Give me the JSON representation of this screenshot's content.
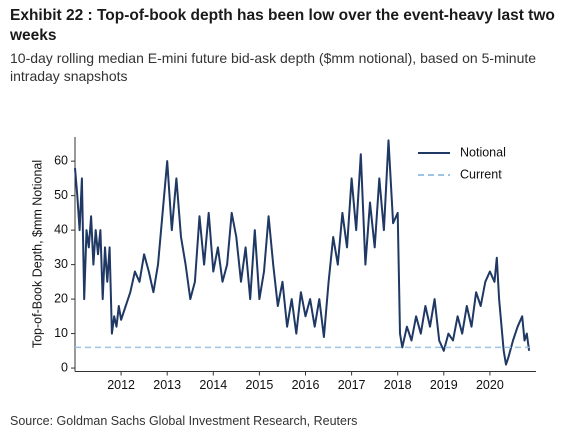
{
  "chart_data": {
    "type": "line",
    "title": "Exhibit 22 : Top-of-book depth has been low over the event-heavy last two weeks",
    "subtitle": "10-day rolling median E-mini future bid-ask depth ($mm notional), based on 5-minute intraday snapshots",
    "y_label": "Top-of-Book Depth, $mm Notional",
    "source": "Source: Goldman Sachs Global Investment Research, Reuters",
    "xlim": [
      2011,
      2021
    ],
    "xticks": [
      2012,
      2013,
      2014,
      2015,
      2016,
      2017,
      2018,
      2019,
      2020
    ],
    "ylim": [
      -1,
      67
    ],
    "yticks": [
      0,
      10,
      20,
      30,
      40,
      50,
      60
    ],
    "legend": "top-right",
    "series": [
      {
        "name": "Notional",
        "color": "#1f3864",
        "dash": false,
        "x": [
          2011.0,
          2011.05,
          2011.1,
          2011.15,
          2011.2,
          2011.25,
          2011.3,
          2011.35,
          2011.4,
          2011.45,
          2011.5,
          2011.55,
          2011.6,
          2011.65,
          2011.7,
          2011.75,
          2011.8,
          2011.85,
          2011.9,
          2011.95,
          2012.0,
          2012.1,
          2012.2,
          2012.3,
          2012.4,
          2012.5,
          2012.6,
          2012.7,
          2012.8,
          2012.9,
          2013.0,
          2013.1,
          2013.2,
          2013.3,
          2013.4,
          2013.5,
          2013.6,
          2013.7,
          2013.8,
          2013.9,
          2014.0,
          2014.1,
          2014.2,
          2014.3,
          2014.4,
          2014.5,
          2014.6,
          2014.7,
          2014.8,
          2014.9,
          2015.0,
          2015.1,
          2015.2,
          2015.3,
          2015.4,
          2015.5,
          2015.6,
          2015.7,
          2015.8,
          2015.9,
          2016.0,
          2016.1,
          2016.2,
          2016.3,
          2016.4,
          2016.5,
          2016.6,
          2016.7,
          2016.8,
          2016.9,
          2017.0,
          2017.1,
          2017.2,
          2017.3,
          2017.4,
          2017.5,
          2017.6,
          2017.7,
          2017.8,
          2017.9,
          2018.0,
          2018.05,
          2018.1,
          2018.2,
          2018.3,
          2018.4,
          2018.5,
          2018.6,
          2018.7,
          2018.8,
          2018.9,
          2019.0,
          2019.1,
          2019.2,
          2019.3,
          2019.4,
          2019.5,
          2019.6,
          2019.7,
          2019.8,
          2019.9,
          2020.0,
          2020.1,
          2020.15,
          2020.2,
          2020.3,
          2020.35,
          2020.4,
          2020.5,
          2020.6,
          2020.7,
          2020.75,
          2020.8,
          2020.85
        ],
        "values": [
          58,
          50,
          40,
          55,
          20,
          40,
          35,
          44,
          30,
          40,
          33,
          40,
          20,
          35,
          25,
          35,
          10,
          15,
          12,
          18,
          14,
          18,
          22,
          28,
          25,
          33,
          28,
          22,
          30,
          45,
          60,
          40,
          55,
          38,
          30,
          20,
          25,
          44,
          30,
          45,
          28,
          35,
          25,
          30,
          45,
          38,
          25,
          35,
          20,
          40,
          20,
          28,
          44,
          30,
          18,
          25,
          12,
          20,
          10,
          22,
          15,
          20,
          12,
          20,
          9,
          25,
          38,
          30,
          45,
          35,
          55,
          40,
          62,
          30,
          48,
          35,
          55,
          40,
          66,
          42,
          45,
          10,
          6,
          12,
          8,
          15,
          10,
          18,
          12,
          20,
          8,
          5,
          10,
          8,
          15,
          10,
          18,
          12,
          22,
          18,
          25,
          28,
          25,
          32,
          20,
          5,
          1,
          3,
          8,
          12,
          15,
          8,
          10,
          5
        ]
      },
      {
        "name": "Current",
        "color": "#9dc3e6",
        "dash": true,
        "x": [
          2011.0,
          2020.85
        ],
        "values": [
          6,
          6
        ]
      }
    ]
  }
}
